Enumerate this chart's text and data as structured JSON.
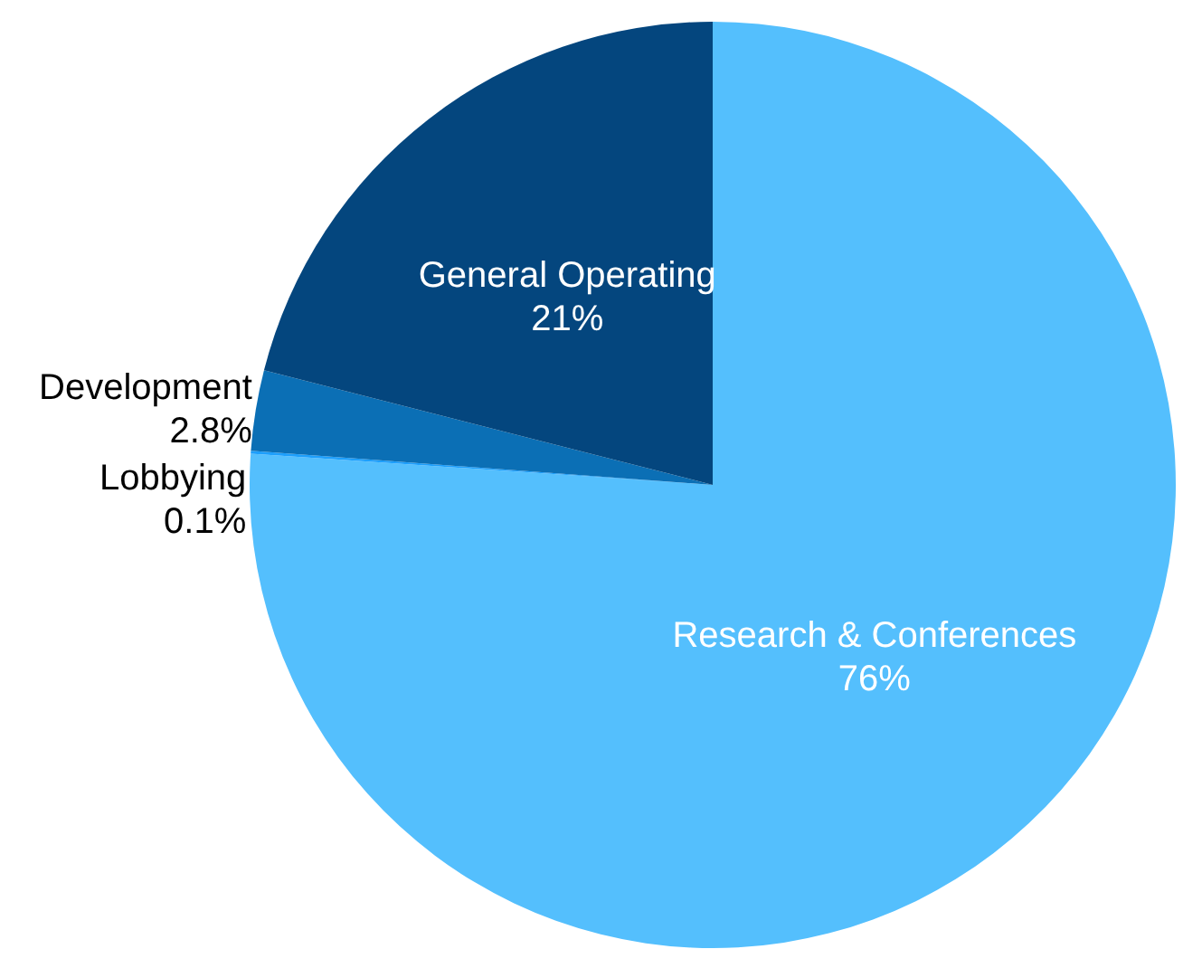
{
  "chart_data": {
    "type": "pie",
    "categories": [
      "Research & Conferences",
      "Lobbying",
      "Development",
      "General Operating"
    ],
    "values": [
      76,
      0.1,
      2.8,
      21
    ],
    "value_labels": [
      "76%",
      "0.1%",
      "2.8%",
      "21%"
    ],
    "colors": [
      "#54bffd",
      "#1d9ffc",
      "#0b6fb5",
      "#04467e"
    ],
    "legend": false
  }
}
